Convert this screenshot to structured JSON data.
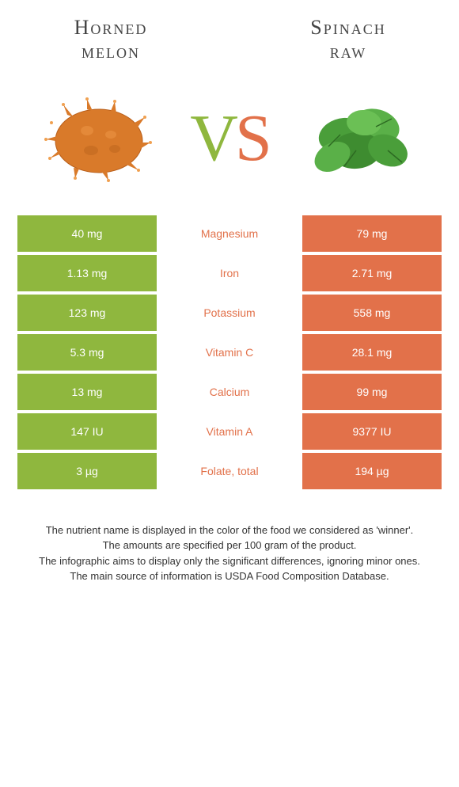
{
  "header": {
    "left_title_line1": "Horned",
    "left_title_line2": "melon",
    "right_title_line1": "Spinach",
    "right_title_line2": "raw"
  },
  "vs": {
    "v": "V",
    "s": "S"
  },
  "colors": {
    "left": "#8fb73e",
    "right": "#e2714a",
    "background": "#ffffff",
    "text_dark": "#444444",
    "footer_text": "#333333"
  },
  "table": {
    "rows": [
      {
        "left": "40 mg",
        "nutrient": "Magnesium",
        "right": "79 mg",
        "winner": "right"
      },
      {
        "left": "1.13 mg",
        "nutrient": "Iron",
        "right": "2.71 mg",
        "winner": "right"
      },
      {
        "left": "123 mg",
        "nutrient": "Potassium",
        "right": "558 mg",
        "winner": "right"
      },
      {
        "left": "5.3 mg",
        "nutrient": "Vitamin C",
        "right": "28.1 mg",
        "winner": "right"
      },
      {
        "left": "13 mg",
        "nutrient": "Calcium",
        "right": "99 mg",
        "winner": "right"
      },
      {
        "left": "147 IU",
        "nutrient": "Vitamin A",
        "right": "9377 IU",
        "winner": "right"
      },
      {
        "left": "3 µg",
        "nutrient": "Folate, total",
        "right": "194 µg",
        "winner": "right"
      }
    ]
  },
  "footer": {
    "line1": "The nutrient name is displayed in the color of the food we considered as 'winner'.",
    "line2": "The amounts are specified per 100 gram of the product.",
    "line3": "The infographic aims to display only the significant differences, ignoring minor ones.",
    "line4": "The main source of information is USDA Food Composition Database."
  },
  "images": {
    "left_alt": "horned-melon",
    "right_alt": "spinach-leaves"
  }
}
